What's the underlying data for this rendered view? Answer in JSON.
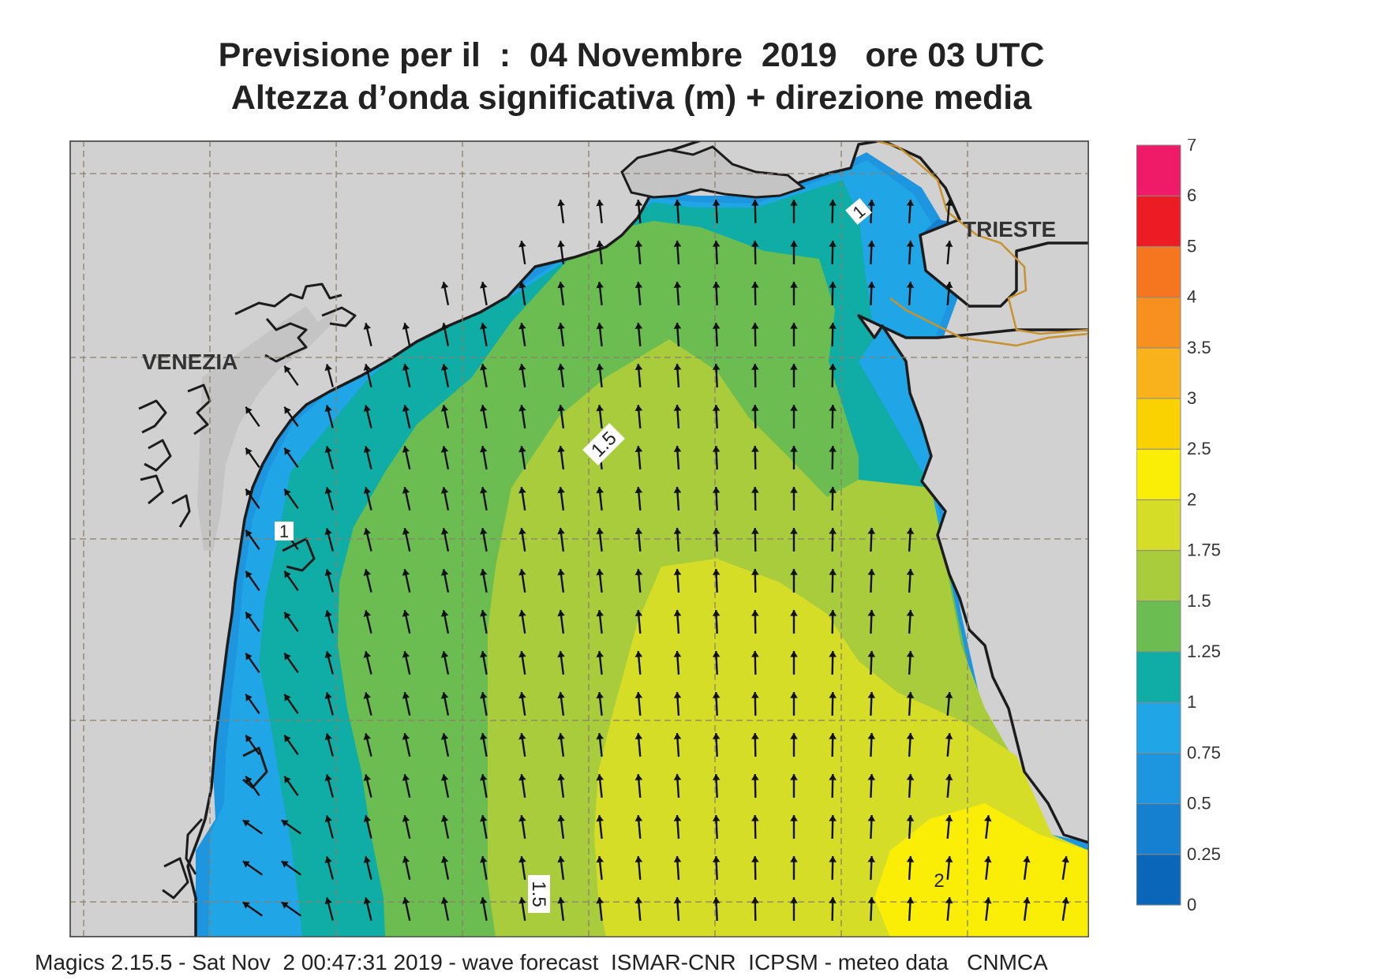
{
  "title_line1": "Previsione per il  :  04 Novembre  2019   ore 03 UTC",
  "title_line2": "Altezza d’onda significativa (m) + direzione media",
  "footer": "Magics 2.15.5 - Sat Nov  2 00:47:31 2019 - wave forecast  ISMAR-CNR  ICPSM - meteo data   CNMCA",
  "places": [
    {
      "name": "VENEZIA"
    },
    {
      "name": "TRIESTE"
    }
  ],
  "contour_labels": [
    "1",
    "1.5",
    "1",
    "1.5",
    "2"
  ],
  "colorbar": {
    "levels": [
      "0",
      "0.25",
      "0.5",
      "0.75",
      "1",
      "1.25",
      "1.5",
      "1.75",
      "2",
      "2.5",
      "3",
      "3.5",
      "4",
      "5",
      "6",
      "7"
    ],
    "colors": [
      "#0a66b8",
      "#1580cf",
      "#1d95df",
      "#20a5e6",
      "#0fada5",
      "#6bbd52",
      "#a9cc3c",
      "#d6dd27",
      "#fbee06",
      "#fad202",
      "#f9b21c",
      "#f7901e",
      "#f6751f",
      "#ed1c24",
      "#ef1a68"
    ]
  },
  "colors": {
    "land": "#d1d1d2",
    "lagoon_land": "#c4c4c4",
    "coast": "#1c1c1c",
    "border": "#c8922e",
    "grid": "#8b7f6a"
  }
}
